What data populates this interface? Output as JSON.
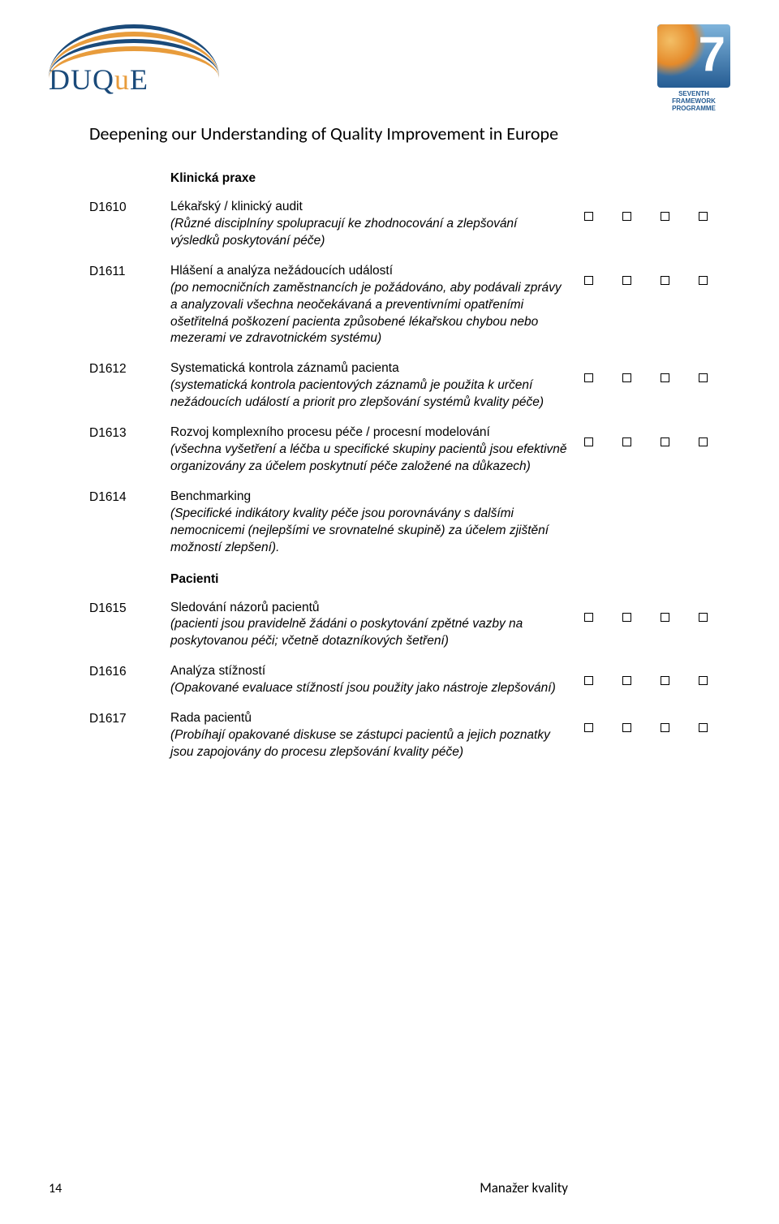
{
  "header": {
    "logo_text_part1": "D",
    "logo_text_part2": "U",
    "logo_text_part3": "Q",
    "logo_text_part4": "u",
    "logo_text_part5": "E",
    "fp7_seven": "7",
    "fp7_caption_line1": "SEVENTH FRAMEWORK",
    "fp7_caption_line2": "PROGRAMME",
    "subtitle": "Deepening our Understanding of Quality Improvement in Europe"
  },
  "sections": {
    "clinical": {
      "heading": "Klinická praxe",
      "rows": [
        {
          "code": "D1610",
          "title": "Lékařský / klinický audit",
          "detail": "(Různé disciplníny spolupracují ke zhodnocování a zlepšování výsledků poskytování péče)",
          "boxes": true
        },
        {
          "code": "D1611",
          "title": "Hlášení a analýza nežádoucích událostí",
          "detail": "(po nemocničních zaměstnancích je požádováno, aby podávali zprávy a analyzovali všechna neočekávaná a preventivními opatřeními ošetřitelná poškození pacienta způsobené  lékařskou chybou nebo mezerami ve zdravotnickém systému)",
          "boxes": true
        },
        {
          "code": "D1612",
          "title": "Systematická kontrola záznamů pacienta",
          "detail": "(systematická kontrola pacientových záznamů je použita k určení nežádoucích událostí a priorit pro zlepšování systémů kvality péče)",
          "boxes": true
        },
        {
          "code": "D1613",
          "title": "Rozvoj komplexního procesu péče / procesní modelování",
          "detail": "(všechna vyšetření a léčba u specifické skupiny pacientů jsou efektivně organizovány za účelem poskytnutí péče založené na důkazech)",
          "boxes": true
        },
        {
          "code": "D1614",
          "title": "Benchmarking",
          "detail": "(Specifické indikátory kvality péče jsou porovnávány s dalšími nemocnicemi (nejlepšími ve srovnatelné skupině) za účelem zjištění možností zlepšení).",
          "boxes": false
        }
      ]
    },
    "patients": {
      "heading": "Pacienti",
      "rows": [
        {
          "code": "D1615",
          "title": "Sledování názorů pacientů",
          "detail": "(pacienti jsou pravidelně žádáni o poskytování zpětné vazby na poskytovanou péči; včetně dotazníkových šetření)",
          "boxes": true
        },
        {
          "code": "D1616",
          "title": "Analýza stížností",
          "detail": "(Opakované evaluace stížností jsou použity jako nástroje zlepšování)",
          "boxes": true
        },
        {
          "code": "D1617",
          "title": "Rada pacientů",
          "detail": "(Probíhají opakované diskuse se zástupci pacientů a jejich poznatky jsou zapojovány do procesu zlepšování kvality péče)",
          "boxes": true
        }
      ]
    }
  },
  "footer": {
    "page_number": "14",
    "label": "Manažer kvality"
  },
  "colors": {
    "logo_blue": "#1a4a7a",
    "logo_orange": "#e89c3c",
    "text": "#000000",
    "background": "#ffffff"
  }
}
